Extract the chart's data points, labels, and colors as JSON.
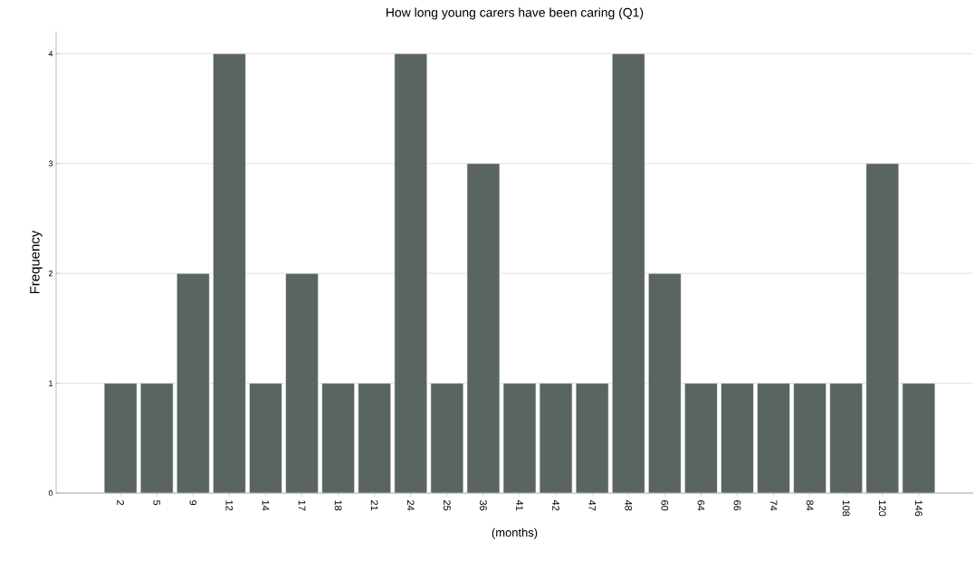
{
  "chart_data": {
    "type": "bar",
    "title": "How long young carers have been caring (Q1)",
    "xlabel": "(months)",
    "ylabel": "Frequency",
    "categories": [
      "2",
      "5",
      "9",
      "12",
      "14",
      "17",
      "18",
      "21",
      "24",
      "25",
      "36",
      "41",
      "42",
      "47",
      "48",
      "60",
      "64",
      "66",
      "74",
      "84",
      "108",
      "120",
      "146"
    ],
    "values": [
      1,
      1,
      2,
      4,
      1,
      2,
      1,
      1,
      4,
      1,
      3,
      1,
      1,
      1,
      4,
      2,
      1,
      1,
      1,
      1,
      1,
      3,
      1
    ],
    "color": "#5a6560",
    "ylim": [
      0,
      4.2
    ],
    "yticks": [
      0,
      1,
      2,
      3,
      4
    ],
    "grid": "y"
  }
}
